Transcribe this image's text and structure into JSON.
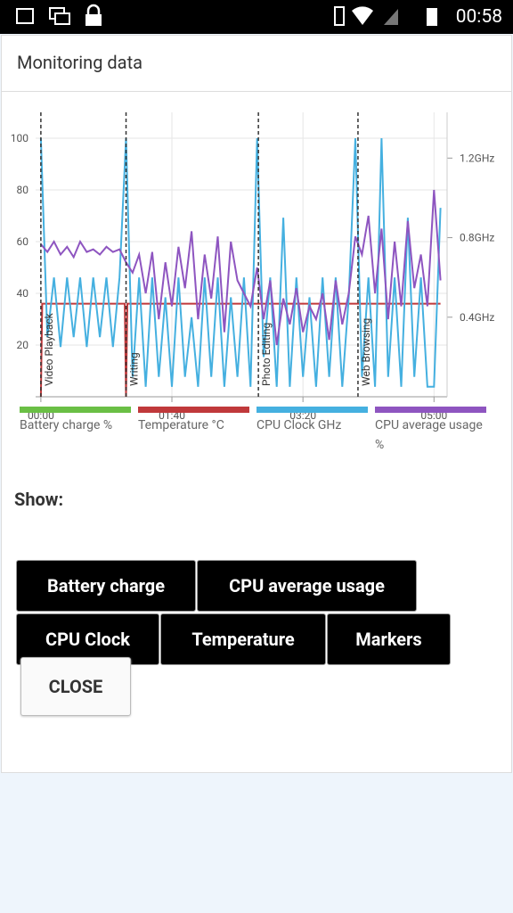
{
  "status_bar": {
    "time": "00:58"
  },
  "dialog": {
    "title": "Monitoring data",
    "show_label": "Show:",
    "buttons": [
      "Battery charge",
      "CPU average usage",
      "CPU Clock",
      "Temperature",
      "Markers"
    ],
    "close": "CLOSE"
  },
  "chart_data": {
    "type": "line",
    "xlim": [
      -4,
      310
    ],
    "xticks": [
      {
        "value": 0,
        "label": "00:00"
      },
      {
        "value": 100,
        "label": "01:40"
      },
      {
        "value": 200,
        "label": "03:20"
      },
      {
        "value": 300,
        "label": "05:00"
      }
    ],
    "ylim": [
      0,
      110
    ],
    "yticks": [
      20,
      40,
      60,
      80,
      100
    ],
    "y2lim": [
      0,
      1.43
    ],
    "y2ticks": [
      {
        "value": 0.4,
        "label": "0.4GHz"
      },
      {
        "value": 0.8,
        "label": "0.8GHz"
      },
      {
        "value": 1.2,
        "label": "1.2GHz"
      }
    ],
    "grid": true,
    "markers": [
      {
        "x": 0,
        "label": "Video Playback"
      },
      {
        "x": 65,
        "label": "Writing"
      },
      {
        "x": 166,
        "label": "Photo Editing"
      },
      {
        "x": 242,
        "label": "Web Browsing"
      }
    ],
    "series": [
      {
        "name": "Battery charge %",
        "color": "#6abf45",
        "x": [],
        "values": []
      },
      {
        "name": "Temperature °C",
        "color": "#c0393b",
        "x": [
          0,
          1,
          64,
          65,
          66,
          305
        ],
        "values": [
          0,
          36,
          36,
          0,
          36,
          36
        ]
      },
      {
        "name": "CPU Clock GHz",
        "color": "#45b0e0",
        "axis": "y2",
        "x": [
          0,
          5,
          10,
          15,
          20,
          25,
          30,
          35,
          40,
          45,
          50,
          55,
          60,
          65,
          70,
          75,
          80,
          85,
          90,
          95,
          100,
          105,
          110,
          115,
          120,
          125,
          130,
          135,
          140,
          145,
          150,
          155,
          160,
          165,
          170,
          175,
          180,
          185,
          190,
          195,
          200,
          205,
          210,
          215,
          220,
          225,
          230,
          235,
          240,
          245,
          250,
          255,
          260,
          265,
          270,
          275,
          280,
          285,
          290,
          295,
          300,
          305
        ],
        "values": [
          1.3,
          0.3,
          0.6,
          0.25,
          0.6,
          0.3,
          0.6,
          0.25,
          0.6,
          0.3,
          0.6,
          0.25,
          0.6,
          1.3,
          0.1,
          0.6,
          0.05,
          0.6,
          0.1,
          0.5,
          0.05,
          0.6,
          0.1,
          0.4,
          0.05,
          0.6,
          0.1,
          0.6,
          0.05,
          0.5,
          0.1,
          0.6,
          0.05,
          1.3,
          0.2,
          0.6,
          0.05,
          0.9,
          0.05,
          0.6,
          0.1,
          0.5,
          0.05,
          0.6,
          0.1,
          0.6,
          0.05,
          0.5,
          1.3,
          0.1,
          0.6,
          0.05,
          1.3,
          0.1,
          0.6,
          0.05,
          0.9,
          0.1,
          0.6,
          0.05,
          0.05,
          0.95
        ]
      },
      {
        "name": "CPU average usage %",
        "color": "#8e55c0",
        "x": [
          0,
          5,
          10,
          15,
          20,
          25,
          30,
          35,
          40,
          45,
          50,
          55,
          60,
          65,
          70,
          75,
          80,
          85,
          90,
          95,
          100,
          105,
          110,
          115,
          120,
          125,
          130,
          135,
          140,
          145,
          150,
          155,
          160,
          165,
          170,
          175,
          180,
          185,
          190,
          195,
          200,
          205,
          210,
          215,
          220,
          225,
          230,
          235,
          240,
          245,
          250,
          255,
          260,
          265,
          270,
          275,
          280,
          285,
          290,
          295,
          300,
          305
        ],
        "values": [
          59,
          56,
          60,
          55,
          58,
          54,
          60,
          56,
          57,
          55,
          58,
          56,
          57,
          52,
          48,
          55,
          40,
          56,
          30,
          52,
          35,
          58,
          42,
          64,
          30,
          55,
          38,
          62,
          25,
          60,
          45,
          40,
          35,
          50,
          30,
          45,
          20,
          38,
          28,
          42,
          25,
          35,
          30,
          40,
          22,
          45,
          28,
          40,
          62,
          55,
          70,
          40,
          65,
          30,
          60,
          35,
          68,
          42,
          55,
          35,
          80,
          45
        ]
      }
    ]
  },
  "legend_note": null
}
